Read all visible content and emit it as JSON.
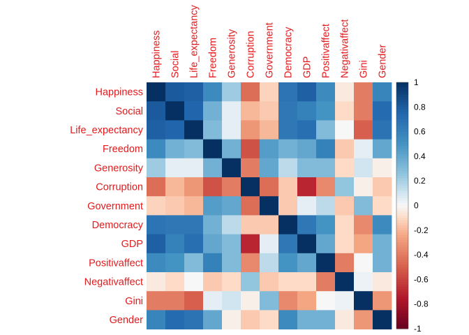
{
  "chart_data": {
    "type": "heatmap",
    "title": "",
    "variables": [
      "Happiness",
      "Social",
      "Life_expectancy",
      "Freedom",
      "Generosity",
      "Corruption",
      "Government",
      "Democracy",
      "GDP",
      "Positivaffect",
      "Negativaffect",
      "Gini",
      "Gender"
    ],
    "values": [
      [
        1.0,
        0.8,
        0.78,
        0.55,
        0.22,
        -0.45,
        -0.12,
        0.67,
        0.78,
        0.55,
        -0.05,
        -0.4,
        0.58
      ],
      [
        0.8,
        1.0,
        0.75,
        0.35,
        0.05,
        -0.2,
        -0.15,
        0.65,
        0.6,
        0.5,
        -0.1,
        -0.4,
        0.72
      ],
      [
        0.78,
        0.75,
        1.0,
        0.3,
        0.05,
        -0.3,
        -0.2,
        0.65,
        0.7,
        0.3,
        0.0,
        -0.5,
        0.68
      ],
      [
        0.55,
        0.35,
        0.3,
        1.0,
        0.35,
        -0.55,
        0.45,
        0.35,
        0.4,
        0.6,
        -0.15,
        0.05,
        0.4
      ],
      [
        0.22,
        0.05,
        0.05,
        0.35,
        1.0,
        -0.4,
        0.4,
        0.15,
        0.3,
        0.3,
        -0.1,
        0.1,
        -0.03
      ],
      [
        -0.45,
        -0.2,
        -0.3,
        -0.55,
        -0.4,
        1.0,
        -0.45,
        -0.15,
        -0.7,
        -0.35,
        0.25,
        -0.03,
        -0.15
      ],
      [
        -0.12,
        -0.15,
        -0.2,
        0.45,
        0.4,
        -0.45,
        1.0,
        -0.15,
        0.05,
        0.15,
        -0.15,
        0.3,
        -0.1
      ],
      [
        0.67,
        0.65,
        0.65,
        0.35,
        0.15,
        -0.15,
        -0.15,
        1.0,
        0.65,
        0.5,
        -0.1,
        -0.35,
        0.55
      ],
      [
        0.78,
        0.6,
        0.7,
        0.4,
        0.3,
        -0.7,
        0.05,
        0.65,
        1.0,
        0.4,
        -0.1,
        -0.25,
        0.35
      ],
      [
        0.55,
        0.5,
        0.3,
        0.6,
        0.3,
        -0.35,
        0.15,
        0.5,
        0.4,
        1.0,
        -0.4,
        0.0,
        0.35
      ],
      [
        -0.05,
        -0.1,
        0.0,
        -0.15,
        -0.1,
        0.25,
        -0.15,
        -0.1,
        -0.1,
        -0.4,
        1.0,
        0.03,
        -0.05
      ],
      [
        -0.4,
        -0.4,
        -0.5,
        0.05,
        0.1,
        -0.03,
        0.3,
        -0.35,
        -0.25,
        0.0,
        0.03,
        1.0,
        -0.3
      ],
      [
        0.58,
        0.72,
        0.68,
        0.4,
        -0.03,
        -0.15,
        -0.1,
        0.55,
        0.35,
        0.35,
        -0.05,
        -0.3,
        1.0
      ]
    ],
    "colorbar": {
      "min": -1,
      "max": 1,
      "tick_labels": [
        "-1",
        "-0.8",
        "-0.6",
        "-0.4",
        "-0.2",
        "0",
        "0.2",
        "0.4",
        "0.6",
        "0.8",
        "1"
      ]
    },
    "colors": {
      "negative_end": "#67001f",
      "neutral": "#f7f7f7",
      "positive_end": "#053061",
      "label_color": "#e41a1c"
    }
  }
}
